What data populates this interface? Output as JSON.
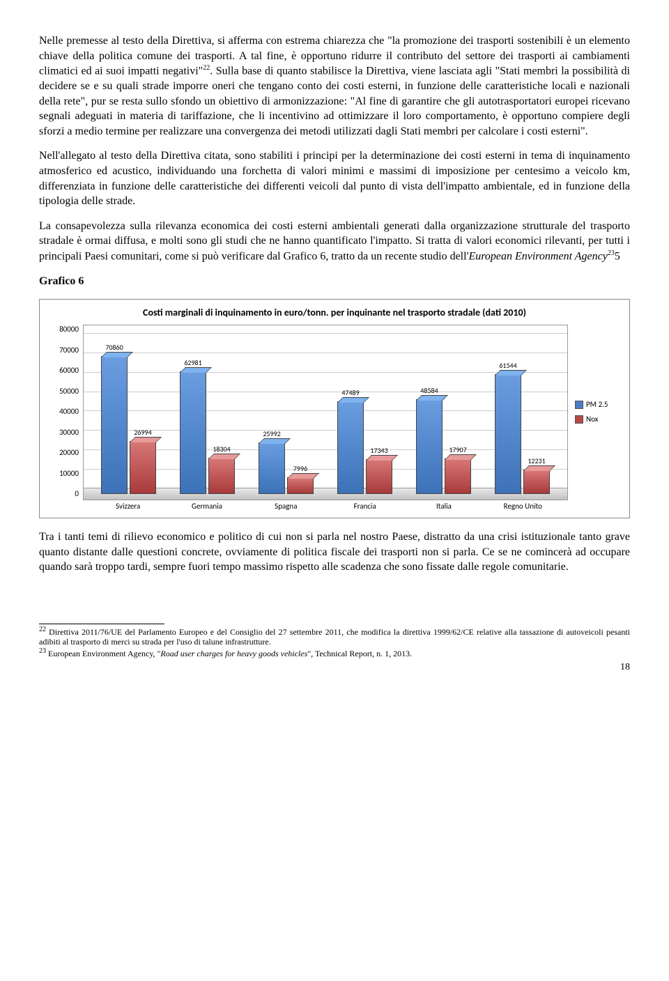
{
  "para1": "Nelle premesse al testo della Direttiva, si afferma con estrema chiarezza che \"la promozione dei trasporti sostenibili è un elemento chiave della politica comune dei trasporti. A tal fine, è opportuno ridurre il contributo del settore dei trasporti ai cambiamenti climatici ed ai suoi impatti negativi\"",
  "para1_sup": "22",
  "para1_tail": ". Sulla base di quanto stabilisce la Direttiva, viene lasciata agli \"Stati membri la possibilità di decidere se e su quali strade imporre oneri che tengano conto dei costi esterni, in funzione delle caratteristiche locali e nazionali della rete\", pur se resta sullo sfondo un obiettivo di armonizzazione: \"Al fine di garantire che gli autotrasportatori europei ricevano segnali adeguati in materia di tariffazione, che li incentivino ad ottimizzare il loro comportamento, è opportuno compiere degli sforzi a medio termine per realizzare una convergenza dei metodi utilizzati dagli Stati membri per calcolare i costi esterni\".",
  "para2": "Nell'allegato al testo della Direttiva citata, sono stabiliti i principi per la determinazione dei costi esterni in tema di inquinamento atmosferico ed acustico, individuando una forchetta di valori minimi e massimi di imposizione per centesimo a veicolo km, differenziata in funzione delle caratteristiche dei differenti veicoli dal punto di vista dell'impatto ambientale, ed in funzione della tipologia delle strade.",
  "para3_a": "La consapevolezza sulla rilevanza economica dei costi esterni ambientali generati dalla organizzazione strutturale del trasporto stradale è ormai diffusa, e molti sono gli studi che ne hanno quantificato l'impatto. Si tratta di valori economici rilevanti, per tutti i principali Paesi comunitari, come si può verificare dal Grafico 6, tratto da un recente studio dell'",
  "para3_b": "European Environment Agency",
  "para3_sup": "23",
  "para3_c": "5",
  "grafico_label": "Grafico 6",
  "chart": {
    "title": "Costi marginali di inquinamento in euro/tonn. per inquinante nel trasporto stradale (dati 2010)",
    "ymax": 80000,
    "yticks": [
      "80000",
      "70000",
      "60000",
      "50000",
      "40000",
      "30000",
      "20000",
      "10000",
      "0"
    ],
    "categories": [
      "Svizzera",
      "Germania",
      "Spagna",
      "Francia",
      "Italia",
      "Regno Unito"
    ],
    "series": [
      {
        "name": "PM 2.5",
        "color": "blue",
        "values": [
          70860,
          62981,
          25992,
          47489,
          48584,
          61544
        ]
      },
      {
        "name": "Nox",
        "color": "red",
        "values": [
          26994,
          18304,
          7996,
          17343,
          17907,
          12231
        ]
      }
    ],
    "legend": [
      "PM 2.5",
      "Nox"
    ]
  },
  "para4": "Tra i tanti temi di rilievo economico e politico di cui non si parla nel nostro Paese, distratto da una crisi istituzionale tanto grave quanto distante dalle questioni concrete, ovviamente di politica fiscale dei trasporti non si parla. Ce se ne comincerà ad occupare quando sarà troppo tardi, sempre fuori tempo massimo rispetto alle scadenza che sono fissate dalle regole comunitarie.",
  "footnote22_sup": "22",
  "footnote22": " Direttiva 2011/76/UE del Parlamento Europeo e del Consiglio del 27 settembre 2011, che modifica la direttiva 1999/62/CE relative alla tassazione di autoveicoli pesanti adibiti al trasporto di merci su strada per l'uso di talune infrastrutture.",
  "footnote23_sup": "23",
  "footnote23_a": " European Environment Agency, \"",
  "footnote23_b": "Road user charges for heavy goods vehicles",
  "footnote23_c": "\", Technical Report, n. 1, 2013.",
  "page_number": "18"
}
